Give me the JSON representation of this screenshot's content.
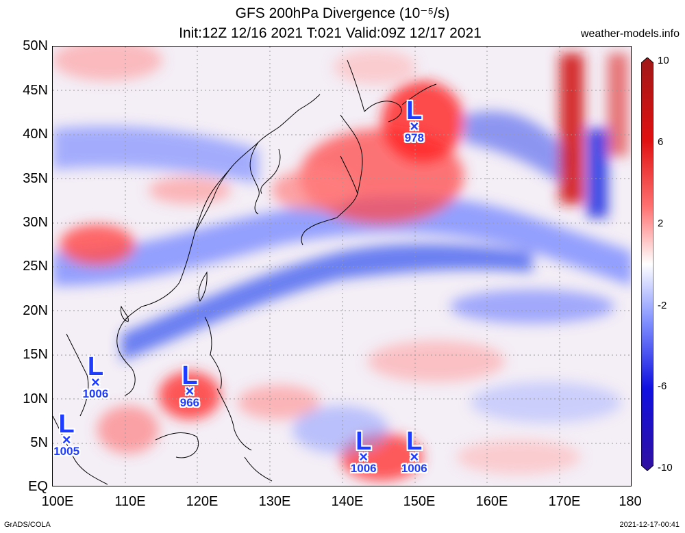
{
  "title_line1": "GFS 200hPa Divergence (10⁻⁵/s)",
  "title_line2": "Init:12Z 12/16 2021 T:021 Valid:09Z 12/17 2021",
  "site": "weather-models.info",
  "footer_left": "GrADS/COLA",
  "footer_right": "2021-12-17-00:41",
  "lat_labels": [
    "50N",
    "45N",
    "40N",
    "35N",
    "30N",
    "25N",
    "20N",
    "15N",
    "10N",
    "5N",
    "EQ"
  ],
  "lon_labels": [
    "100E",
    "110E",
    "120E",
    "130E",
    "140E",
    "150E",
    "160E",
    "170E",
    "180"
  ],
  "colorbar": {
    "labels": [
      "10",
      "6",
      "2",
      "-2",
      "-6",
      "-10"
    ],
    "colors": [
      "#a01818",
      "#e01010",
      "#ff5050",
      "#ffb0b0",
      "#ffffff",
      "#b0b8ff",
      "#4060ff",
      "#1010e0",
      "#3010a0"
    ]
  },
  "lows": [
    {
      "symbol": "L",
      "marker": "×",
      "value": "978",
      "lon": 150.0,
      "lat": 40.5
    },
    {
      "symbol": "L",
      "marker": "×",
      "value": "1006",
      "lon": 106.0,
      "lat": 11.5
    },
    {
      "symbol": "L",
      "marker": "×",
      "value": "966",
      "lon": 119.0,
      "lat": 10.5
    },
    {
      "symbol": "L",
      "marker": "×",
      "value": "1005",
      "lon": 102.0,
      "lat": 5.0
    },
    {
      "symbol": "L",
      "marker": "×",
      "value": "1006",
      "lon": 143.0,
      "lat": 3.0
    },
    {
      "symbol": "L",
      "marker": "×",
      "value": "1006",
      "lon": 150.0,
      "lat": 3.0
    }
  ]
}
